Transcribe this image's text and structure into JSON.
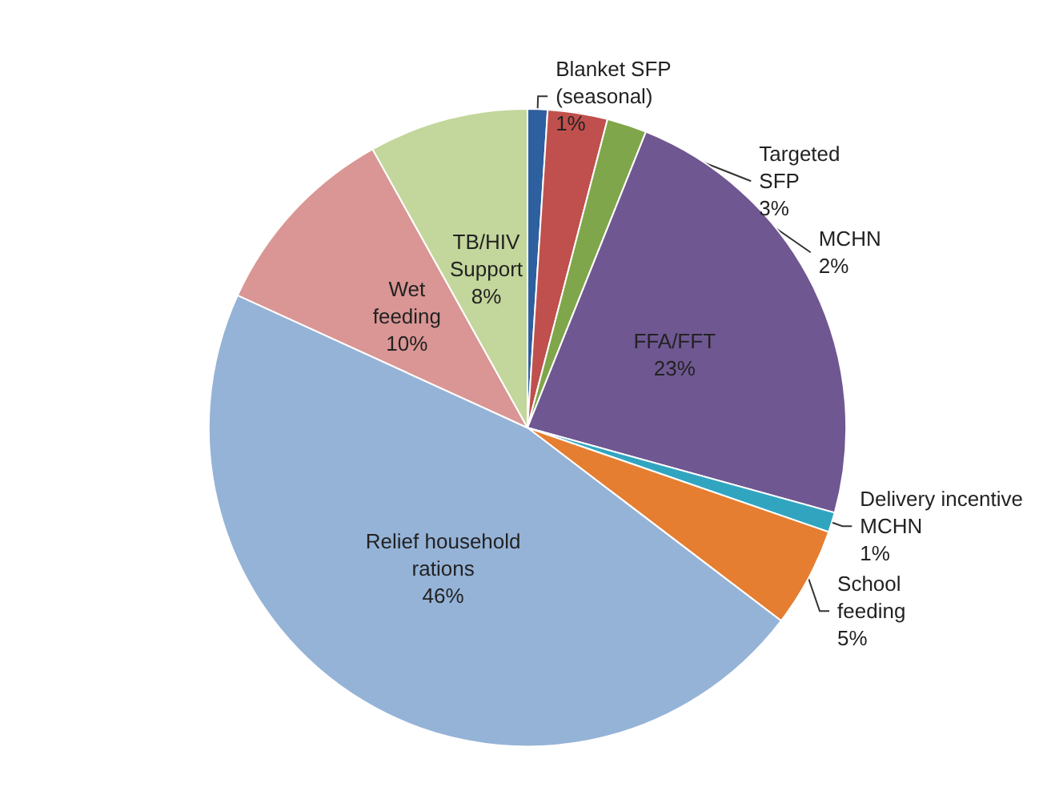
{
  "chart_data": {
    "type": "pie",
    "categories": [
      "Blanket SFP (seasonal)",
      "Targeted SFP",
      "MCHN",
      "FFA/FFT",
      "Delivery incentive MCHN",
      "School feeding",
      "Relief household rations",
      "Wet feeding",
      "TB/HIV Support"
    ],
    "values": [
      1,
      3,
      2,
      23,
      1,
      5,
      46,
      10,
      8
    ],
    "value_labels": [
      "1%",
      "3%",
      "2%",
      "23%",
      "1%",
      "5%",
      "46%",
      "10%",
      "8%"
    ],
    "colors": [
      "#2e5f9e",
      "#c0504d",
      "#7fa64a",
      "#6f5792",
      "#31a5c0",
      "#e57e31",
      "#95b3d7",
      "#d99694",
      "#c3d69b"
    ],
    "legend": false
  }
}
